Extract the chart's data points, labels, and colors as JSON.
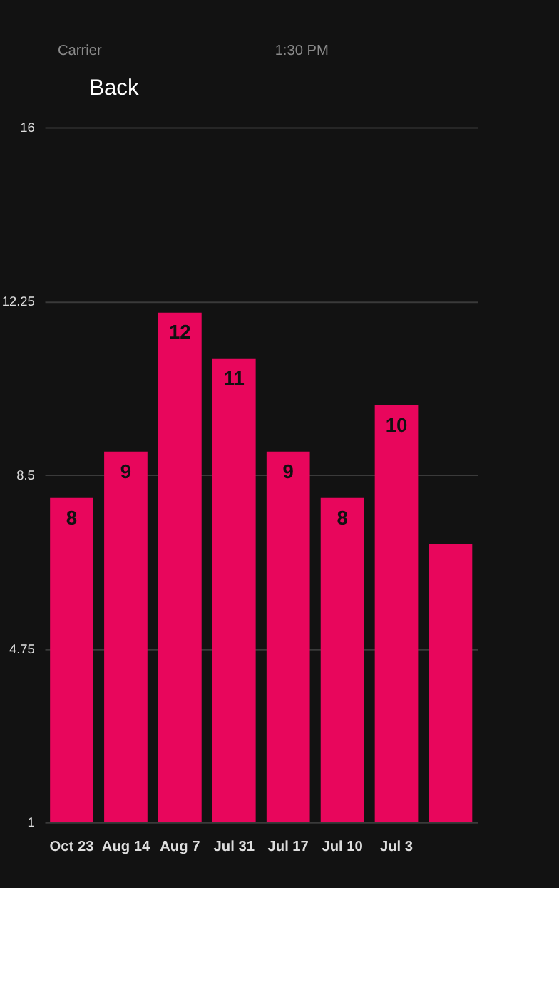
{
  "chart_data": {
    "type": "bar",
    "annotations": [
      "Carrier",
      "1:30 PM",
      "Back"
    ],
    "categories": [
      "Oct 23",
      "Aug 14",
      "Aug 7",
      "Jul 31",
      "Jul 17",
      "Jul 10",
      "Jul 3",
      null
    ],
    "values": [
      8,
      9,
      12,
      11,
      9,
      8,
      10,
      7
    ],
    "value_labels": [
      "8",
      "9",
      "12",
      "11",
      "9",
      "8",
      "10",
      null
    ],
    "color": "#e8065c",
    "ylim": [
      1,
      16
    ],
    "yticks": [
      1,
      4.75,
      8.5,
      12.25,
      16
    ],
    "grid": "y"
  }
}
